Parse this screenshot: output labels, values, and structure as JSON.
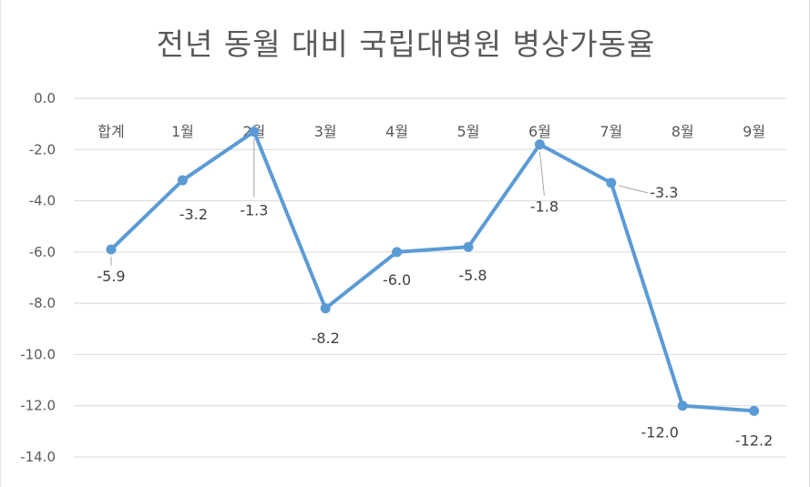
{
  "chart_data": {
    "type": "line",
    "title": "전년 동월 대비 국립대병원 병상가동율",
    "xlabel": "",
    "ylabel": "",
    "categories": [
      "합계",
      "1월",
      "2월",
      "3월",
      "4월",
      "5월",
      "6월",
      "7월",
      "8월",
      "9월"
    ],
    "values": [
      -5.9,
      -3.2,
      -1.3,
      -8.2,
      -6.0,
      -5.8,
      -1.8,
      -3.3,
      -12.0,
      -12.2
    ],
    "data_labels": [
      "-5.9",
      "-3.2",
      "-1.3",
      "-8.2",
      "-6.0",
      "-5.8",
      "-1.8",
      "-3.3",
      "-12.0",
      "-12.2"
    ],
    "ylim": [
      -14,
      0
    ],
    "yticks": [
      0,
      -2,
      -4,
      -6,
      -8,
      -10,
      -12,
      -14
    ],
    "ytick_labels": [
      "0.0",
      "-2.0",
      "-4.0",
      "-6.0",
      "-8.0",
      "-10.0",
      "-12.0",
      "-14.0"
    ],
    "grid": true,
    "legend": "none",
    "line_color": "#5b9bd5",
    "grid_color": "#d9d9d9",
    "text_color": "#595959"
  }
}
